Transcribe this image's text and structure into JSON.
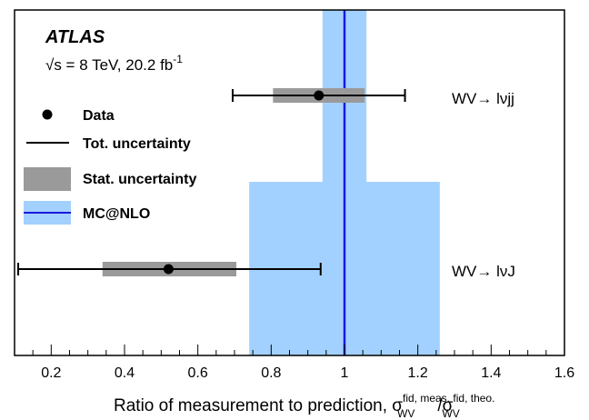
{
  "chart_data": {
    "type": "scatter",
    "experiment": "ATLAS",
    "energy_label": "√s = 8 TeV, 20.2 fb",
    "energy_label_sup": "-1",
    "xlabel": "Ratio of measurement to prediction, σ",
    "xlabel_sup1": "fid, meas.",
    "xlabel_sub1": "WV",
    "xlabel_slash": "/σ",
    "xlabel_sup2": "fid, theo.",
    "xlabel_sub2": "WV",
    "xlim": [
      0.1,
      1.6
    ],
    "xticks": [
      0.2,
      0.4,
      0.6,
      0.8,
      1.0,
      1.2,
      1.4,
      1.6
    ],
    "xtick_labels": [
      "0.2",
      "0.4",
      "0.6",
      "0.8",
      "1",
      "1.2",
      "1.4",
      "1.6"
    ],
    "grid": false,
    "legend": {
      "placement": "left",
      "entries": [
        "Data",
        "Tot. uncertainty",
        "Stat. uncertainty",
        "MC@NLO"
      ]
    },
    "prediction": {
      "name": "MC@NLO",
      "value": 1.0
    },
    "measurements": [
      {
        "label": "WV→ lνjj",
        "value": 0.93,
        "tot_low": 0.695,
        "tot_high": 1.165,
        "stat_low": 0.805,
        "stat_high": 1.055,
        "theory_low": 0.94,
        "theory_high": 1.06
      },
      {
        "label": "WV→ lνJ",
        "value": 0.52,
        "tot_low": 0.11,
        "tot_high": 0.935,
        "stat_low": 0.34,
        "stat_high": 0.705,
        "theory_low": 0.74,
        "theory_high": 1.26
      }
    ],
    "colors": {
      "band": "#a3d1ff",
      "stat": "#9a9a9a",
      "prediction_line": "#1a1adb",
      "data": "#000000"
    }
  }
}
